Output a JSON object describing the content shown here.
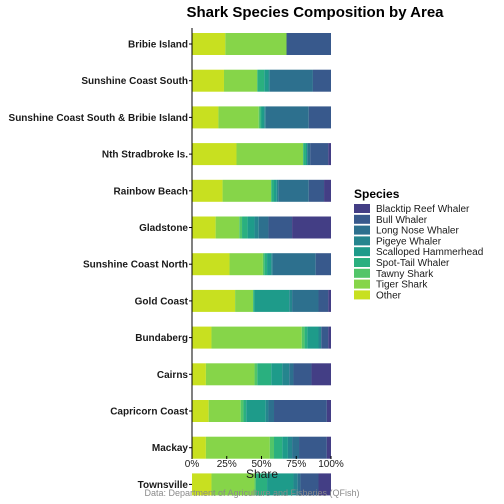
{
  "chart_data": {
    "type": "bar",
    "orientation": "horizontal",
    "stacked": true,
    "title": "Shark Species Composition by Area",
    "xlabel": "Share",
    "ylabel": "",
    "xlim": [
      0,
      1
    ],
    "x_ticks": [
      "0%",
      "25%",
      "50%",
      "75%",
      "100%"
    ],
    "legend_title": "Species",
    "legend_position": "right",
    "caption": "Data: Department of Agriculture and Fisheries (QFish)",
    "categories": [
      "Bribie Island",
      "Sunshine Coast South",
      "Sunshine Coast South & Bribie Island",
      "Nth Stradbroke Is.",
      "Rainbow Beach",
      "Gladstone",
      "Sunshine Coast North",
      "Gold Coast",
      "Bundaberg",
      "Cairns",
      "Capricorn Coast",
      "Mackay",
      "Townsville"
    ],
    "series": [
      {
        "name": "Other",
        "color": "#C8E020",
        "values": [
          0.24,
          0.23,
          0.19,
          0.32,
          0.22,
          0.17,
          0.27,
          0.31,
          0.14,
          0.1,
          0.12,
          0.1,
          0.14
        ]
      },
      {
        "name": "Tiger Shark",
        "color": "#86D549",
        "values": [
          0.44,
          0.24,
          0.29,
          0.48,
          0.35,
          0.17,
          0.24,
          0.13,
          0.65,
          0.35,
          0.23,
          0.46,
          0.31
        ]
      },
      {
        "name": "Tawny Shark",
        "color": "#52C569",
        "values": [
          0.0,
          0.0,
          0.01,
          0.0,
          0.0,
          0.02,
          0.01,
          0.0,
          0.02,
          0.02,
          0.02,
          0.03,
          0.01
        ]
      },
      {
        "name": "Spot-Tail Whaler",
        "color": "#2AB07F",
        "values": [
          0.0,
          0.05,
          0.01,
          0.02,
          0.02,
          0.04,
          0.02,
          0.01,
          0.02,
          0.1,
          0.02,
          0.06,
          0.08
        ]
      },
      {
        "name": "Scalloped Hammerhead",
        "color": "#1E9B8A",
        "values": [
          0.0,
          0.03,
          0.02,
          0.01,
          0.02,
          0.05,
          0.03,
          0.25,
          0.08,
          0.08,
          0.14,
          0.04,
          0.19
        ]
      },
      {
        "name": "Pigeye Whaler",
        "color": "#25858E",
        "values": [
          0.0,
          0.01,
          0.01,
          0.0,
          0.01,
          0.03,
          0.01,
          0.02,
          0.02,
          0.05,
          0.02,
          0.03,
          0.03
        ]
      },
      {
        "name": "Long Nose Whaler",
        "color": "#2D708E",
        "values": [
          0.0,
          0.31,
          0.31,
          0.02,
          0.22,
          0.07,
          0.31,
          0.19,
          0.0,
          0.03,
          0.04,
          0.05,
          0.02
        ]
      },
      {
        "name": "Bull Whaler",
        "color": "#38598C",
        "values": [
          0.32,
          0.13,
          0.16,
          0.13,
          0.11,
          0.17,
          0.11,
          0.07,
          0.05,
          0.13,
          0.38,
          0.2,
          0.13
        ]
      },
      {
        "name": "Blacktip Reef Whaler",
        "color": "#433E85",
        "values": [
          0.0,
          0.0,
          0.0,
          0.02,
          0.05,
          0.28,
          0.0,
          0.02,
          0.02,
          0.14,
          0.03,
          0.03,
          0.09
        ]
      }
    ]
  }
}
